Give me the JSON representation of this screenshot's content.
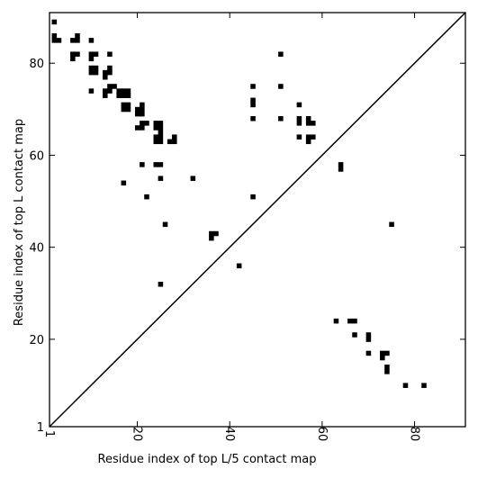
{
  "chart_data": {
    "type": "scatter",
    "title": "",
    "xlabel": "Residue index of top L/5 contact map",
    "ylabel": "Residue index of top L contact map",
    "xlim": [
      1,
      91
    ],
    "ylim": [
      1,
      91
    ],
    "xticks": [
      1,
      20,
      40,
      60,
      80
    ],
    "yticks": [
      1,
      20,
      40,
      60,
      80
    ],
    "grid": false,
    "diagonal": true,
    "upper_points": [
      [
        2,
        89
      ],
      [
        2,
        86
      ],
      [
        2,
        85
      ],
      [
        3,
        85
      ],
      [
        6,
        85
      ],
      [
        7,
        85
      ],
      [
        7,
        86
      ],
      [
        6,
        82
      ],
      [
        7,
        82
      ],
      [
        6,
        81
      ],
      [
        10,
        85
      ],
      [
        10,
        82
      ],
      [
        11,
        82
      ],
      [
        10,
        81
      ],
      [
        10,
        79
      ],
      [
        11,
        79
      ],
      [
        10,
        78
      ],
      [
        11,
        78
      ],
      [
        10,
        74
      ],
      [
        14,
        82
      ],
      [
        14,
        79
      ],
      [
        14,
        78
      ],
      [
        13,
        78
      ],
      [
        13,
        77
      ],
      [
        13,
        74
      ],
      [
        13,
        73
      ],
      [
        14,
        74
      ],
      [
        14,
        75
      ],
      [
        15,
        75
      ],
      [
        16,
        74
      ],
      [
        17,
        74
      ],
      [
        18,
        74
      ],
      [
        16,
        73
      ],
      [
        17,
        73
      ],
      [
        18,
        73
      ],
      [
        17,
        71
      ],
      [
        18,
        71
      ],
      [
        17,
        70
      ],
      [
        18,
        70
      ],
      [
        20,
        70
      ],
      [
        21,
        70
      ],
      [
        20,
        69
      ],
      [
        21,
        69
      ],
      [
        21,
        71
      ],
      [
        20,
        66
      ],
      [
        21,
        66
      ],
      [
        21,
        67
      ],
      [
        22,
        67
      ],
      [
        24,
        67
      ],
      [
        25,
        67
      ],
      [
        24,
        66
      ],
      [
        25,
        66
      ],
      [
        25,
        65
      ],
      [
        24,
        64
      ],
      [
        25,
        64
      ],
      [
        24,
        63
      ],
      [
        25,
        63
      ],
      [
        27,
        63
      ],
      [
        28,
        63
      ],
      [
        28,
        64
      ],
      [
        21,
        58
      ],
      [
        24,
        58
      ],
      [
        25,
        58
      ],
      [
        25,
        55
      ],
      [
        32,
        55
      ],
      [
        17,
        54
      ],
      [
        22,
        51
      ],
      [
        26,
        45
      ],
      [
        25,
        32
      ],
      [
        45,
        75
      ],
      [
        45,
        72
      ],
      [
        45,
        71
      ],
      [
        45,
        68
      ],
      [
        45,
        51
      ],
      [
        51,
        82
      ],
      [
        51,
        75
      ],
      [
        51,
        68
      ],
      [
        55,
        71
      ],
      [
        55,
        68
      ],
      [
        55,
        67
      ],
      [
        55,
        64
      ],
      [
        57,
        68
      ],
      [
        57,
        67
      ],
      [
        58,
        67
      ],
      [
        57,
        64
      ],
      [
        58,
        64
      ],
      [
        57,
        63
      ],
      [
        64,
        58
      ],
      [
        64,
        57
      ],
      [
        75,
        45
      ],
      [
        36,
        43
      ],
      [
        37,
        43
      ],
      [
        36,
        42
      ],
      [
        42,
        36
      ]
    ],
    "lower_points": [
      [
        63,
        24
      ],
      [
        66,
        24
      ],
      [
        67,
        24
      ],
      [
        67,
        21
      ],
      [
        70,
        21
      ],
      [
        70,
        20
      ],
      [
        70,
        17
      ],
      [
        73,
        17
      ],
      [
        74,
        17
      ],
      [
        73,
        16
      ],
      [
        74,
        14
      ],
      [
        74,
        13
      ],
      [
        78,
        10
      ],
      [
        82,
        10
      ]
    ]
  }
}
